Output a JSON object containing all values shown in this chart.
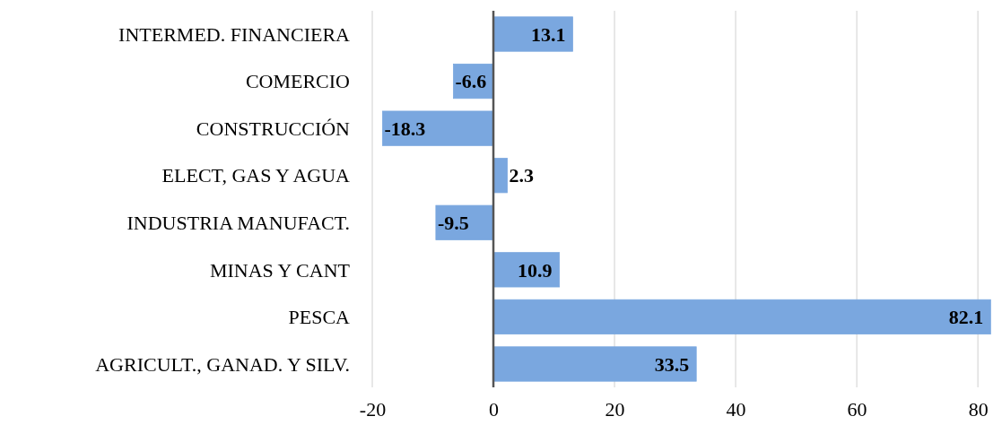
{
  "chart_data": {
    "type": "bar",
    "orientation": "horizontal",
    "categories": [
      "INTERMED. FINANCIERA",
      "COMERCIO",
      "CONSTRUCCIÓN",
      "ELECT, GAS Y AGUA",
      "INDUSTRIA MANUFACT.",
      "MINAS Y CANT",
      "PESCA",
      "AGRICULT., GANAD. Y SILV."
    ],
    "values": [
      13.1,
      -6.6,
      -18.3,
      2.3,
      -9.5,
      10.9,
      82.1,
      33.5
    ],
    "color": "#7aa7df",
    "xlim": [
      -20,
      82.2
    ],
    "xticks": [
      -20,
      0,
      20,
      40,
      60,
      80
    ],
    "grid": "x",
    "data_labels": true
  }
}
